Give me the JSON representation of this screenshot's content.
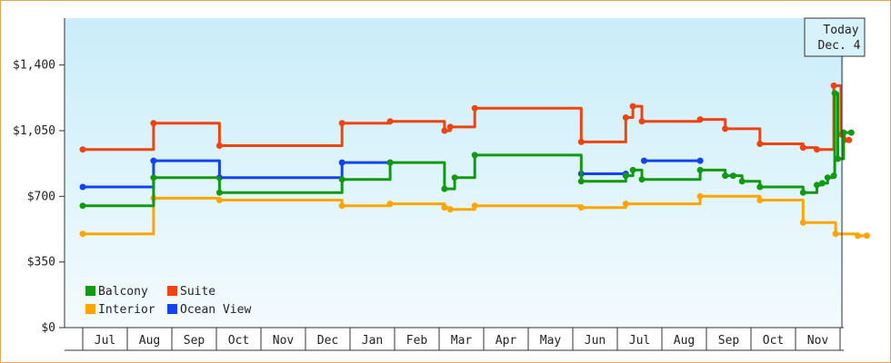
{
  "chart_data": {
    "type": "line",
    "step": true,
    "title": "",
    "xlabel": "",
    "ylabel": "",
    "ylim": [
      0,
      1650
    ],
    "yticks": [
      {
        "value": 0,
        "label": "$0"
      },
      {
        "value": 350,
        "label": "$350"
      },
      {
        "value": 700,
        "label": "$700"
      },
      {
        "value": 1050,
        "label": "$1,050"
      },
      {
        "value": 1400,
        "label": "$1,400"
      }
    ],
    "month_labels": [
      "Jul",
      "Aug",
      "Sep",
      "Oct",
      "Nov",
      "Dec",
      "Jan",
      "Feb",
      "Mar",
      "Apr",
      "May",
      "Jun",
      "Jul",
      "Aug",
      "Sep",
      "Oct",
      "Nov"
    ],
    "today_marker": {
      "line1": "Today",
      "line2": "Dec. 4"
    },
    "legend": {
      "placement": "bottom-left"
    },
    "grid": false,
    "x_unit": "months since Jun 30",
    "series": [
      {
        "name": "Balcony",
        "color": "#119911",
        "points": [
          [
            0,
            650
          ],
          [
            1.59,
            650
          ],
          [
            1.59,
            800
          ],
          [
            3.07,
            800
          ],
          [
            3.07,
            720
          ],
          [
            5.82,
            720
          ],
          [
            5.82,
            790
          ],
          [
            6.9,
            790
          ],
          [
            6.9,
            880
          ],
          [
            8.12,
            880
          ],
          [
            8.12,
            740
          ],
          [
            8.35,
            740
          ],
          [
            8.35,
            800
          ],
          [
            8.8,
            800
          ],
          [
            8.8,
            920
          ],
          [
            11.19,
            920
          ],
          [
            11.19,
            780
          ],
          [
            12.19,
            780
          ],
          [
            12.19,
            810
          ],
          [
            12.35,
            810
          ],
          [
            12.35,
            840
          ],
          [
            12.55,
            840
          ],
          [
            12.55,
            790
          ],
          [
            13.86,
            790
          ],
          [
            13.86,
            840
          ],
          [
            14.42,
            840
          ],
          [
            14.42,
            810
          ],
          [
            14.6,
            810
          ],
          [
            14.6,
            810
          ],
          [
            14.8,
            810
          ],
          [
            14.8,
            780
          ],
          [
            15.2,
            780
          ],
          [
            15.2,
            750
          ],
          [
            16.17,
            750
          ],
          [
            16.17,
            720
          ],
          [
            16.48,
            720
          ],
          [
            16.48,
            760
          ],
          [
            16.6,
            760
          ],
          [
            16.6,
            770
          ],
          [
            16.72,
            770
          ],
          [
            16.72,
            800
          ],
          [
            16.86,
            800
          ],
          [
            16.86,
            810
          ],
          [
            16.88,
            810
          ],
          [
            16.88,
            1250
          ],
          [
            16.95,
            1250
          ],
          [
            16.95,
            900
          ],
          [
            17.08,
            900
          ],
          [
            17.08,
            1040
          ],
          [
            17.25,
            1040
          ],
          [
            17.25,
            1040
          ]
        ]
      },
      {
        "name": "Suite",
        "color": "#ee4411",
        "points": [
          [
            0,
            950
          ],
          [
            1.59,
            950
          ],
          [
            1.59,
            1090
          ],
          [
            3.07,
            1090
          ],
          [
            3.07,
            970
          ],
          [
            5.82,
            970
          ],
          [
            5.82,
            1090
          ],
          [
            6.9,
            1090
          ],
          [
            6.9,
            1100
          ],
          [
            8.12,
            1100
          ],
          [
            8.12,
            1050
          ],
          [
            8.25,
            1050
          ],
          [
            8.25,
            1070
          ],
          [
            8.8,
            1070
          ],
          [
            8.8,
            1170
          ],
          [
            11.19,
            1170
          ],
          [
            11.19,
            990
          ],
          [
            12.19,
            990
          ],
          [
            12.19,
            1120
          ],
          [
            12.35,
            1120
          ],
          [
            12.35,
            1180
          ],
          [
            12.55,
            1180
          ],
          [
            12.55,
            1100
          ],
          [
            13.86,
            1100
          ],
          [
            13.86,
            1110
          ],
          [
            14.42,
            1110
          ],
          [
            14.42,
            1060
          ],
          [
            15.2,
            1060
          ],
          [
            15.2,
            980
          ],
          [
            16.17,
            980
          ],
          [
            16.17,
            960
          ],
          [
            16.48,
            960
          ],
          [
            16.48,
            950
          ],
          [
            16.86,
            950
          ],
          [
            16.86,
            1290
          ],
          [
            17.02,
            1290
          ],
          [
            17.02,
            1030
          ],
          [
            17.1,
            1030
          ],
          [
            17.1,
            1000
          ],
          [
            17.2,
            1000
          ]
        ]
      },
      {
        "name": "Interior",
        "color": "#ffa500",
        "points": [
          [
            0,
            500
          ],
          [
            1.59,
            500
          ],
          [
            1.59,
            690
          ],
          [
            3.07,
            690
          ],
          [
            3.07,
            680
          ],
          [
            5.82,
            680
          ],
          [
            5.82,
            650
          ],
          [
            6.9,
            650
          ],
          [
            6.9,
            660
          ],
          [
            8.12,
            660
          ],
          [
            8.12,
            640
          ],
          [
            8.25,
            640
          ],
          [
            8.25,
            630
          ],
          [
            8.8,
            630
          ],
          [
            8.8,
            650
          ],
          [
            11.19,
            650
          ],
          [
            11.19,
            640
          ],
          [
            12.19,
            640
          ],
          [
            12.19,
            660
          ],
          [
            13.86,
            660
          ],
          [
            13.86,
            700
          ],
          [
            15.2,
            700
          ],
          [
            15.2,
            680
          ],
          [
            16.17,
            680
          ],
          [
            16.17,
            560
          ],
          [
            16.9,
            560
          ],
          [
            16.9,
            500
          ],
          [
            17.4,
            500
          ],
          [
            17.4,
            490
          ],
          [
            17.6,
            490
          ]
        ]
      },
      {
        "name": "Ocean View",
        "color": "#1144ee",
        "points": [
          [
            0,
            750
          ],
          [
            1.59,
            750
          ],
          [
            1.59,
            890
          ],
          [
            3.07,
            890
          ],
          [
            3.07,
            800
          ],
          [
            5.82,
            800
          ],
          [
            5.82,
            880
          ],
          [
            6.9,
            880
          ]
        ],
        "points2": [
          [
            11.19,
            820
          ],
          [
            12.19,
            820
          ]
        ],
        "points3": [
          [
            12.6,
            890
          ],
          [
            13.86,
            890
          ]
        ]
      }
    ]
  }
}
